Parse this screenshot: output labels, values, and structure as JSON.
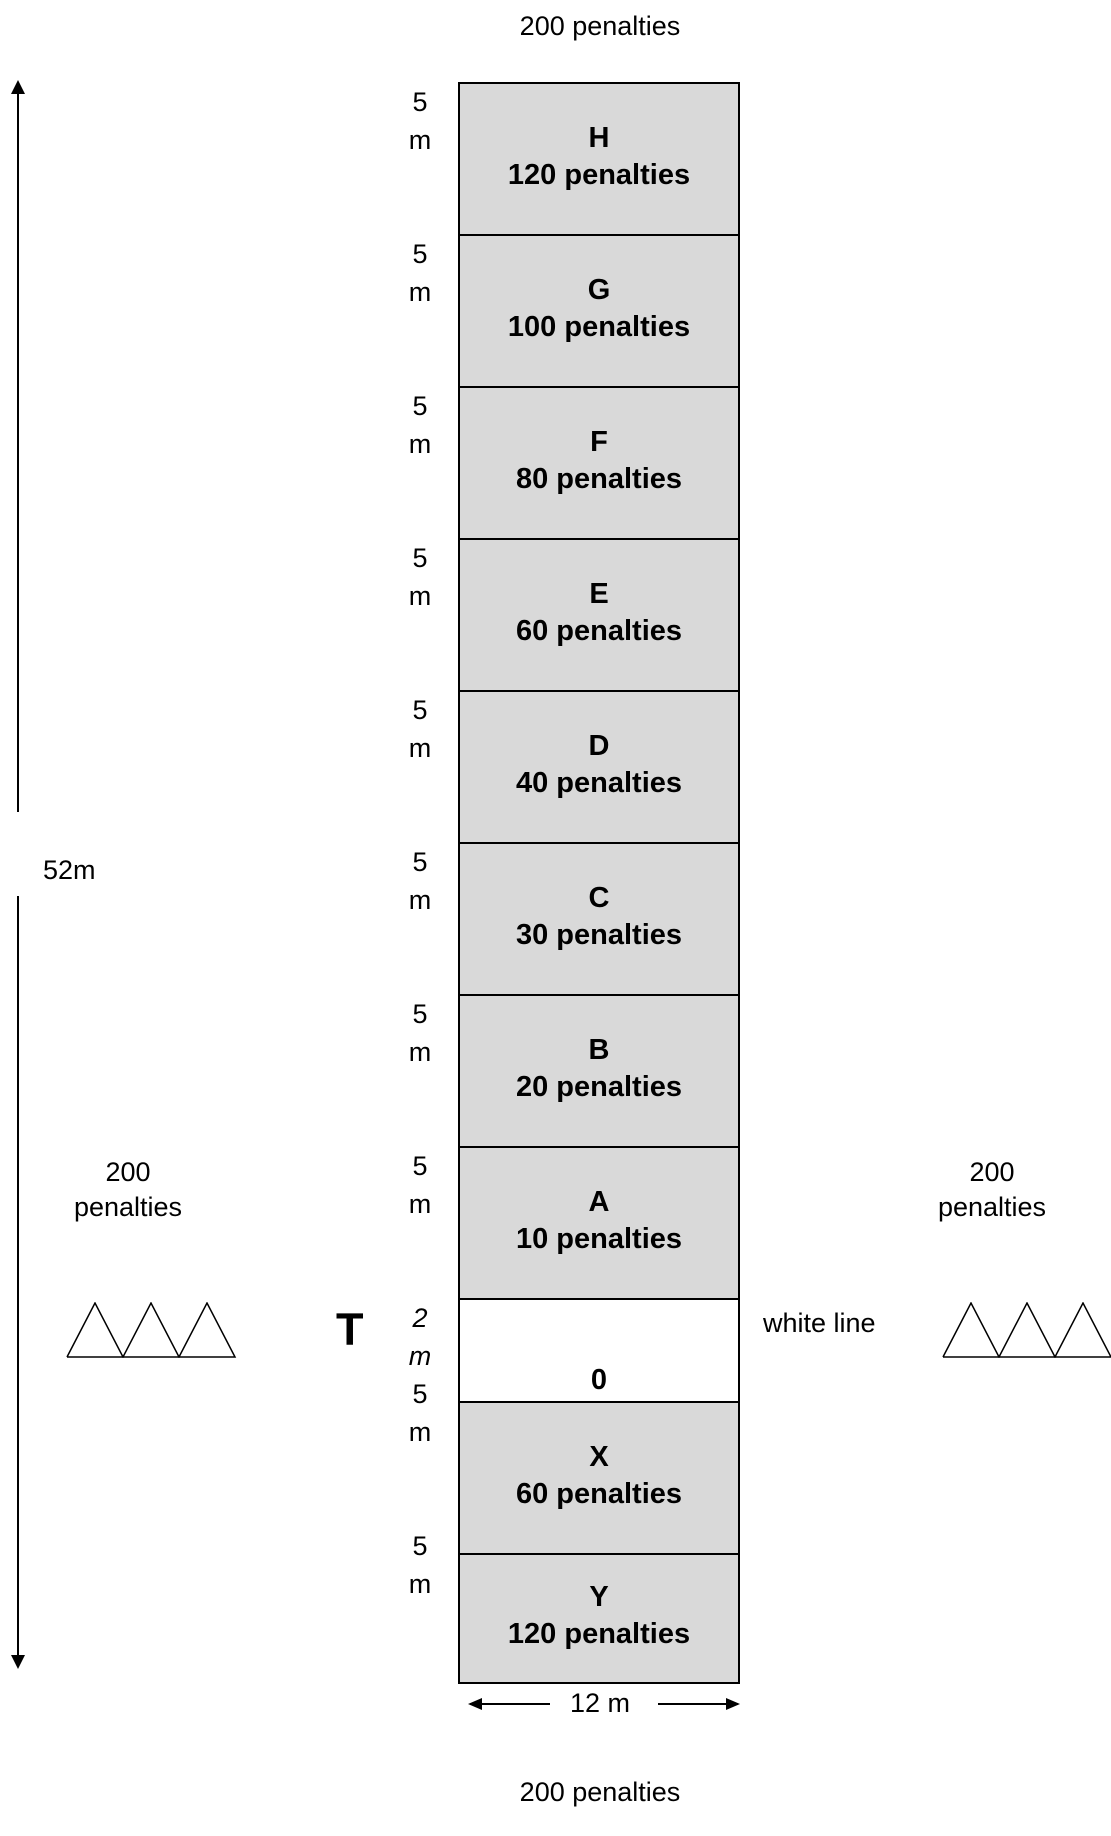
{
  "labels": {
    "top_penalty": "200 penalties",
    "bottom_penalty": "200 penalties",
    "left_penalty_value": "200",
    "left_penalty_word": "penalties",
    "right_penalty_value": "200",
    "right_penalty_word": "penalties",
    "length": "52m",
    "width": "12 m",
    "tee": "T",
    "white_line": "white line"
  },
  "zones": [
    {
      "letter": "H",
      "penalty": "120 penalties",
      "side_num": "5",
      "side_unit": "m"
    },
    {
      "letter": "G",
      "penalty": "100 penalties",
      "side_num": "5",
      "side_unit": "m"
    },
    {
      "letter": "F",
      "penalty": "80 penalties",
      "side_num": "5",
      "side_unit": "m"
    },
    {
      "letter": "E",
      "penalty": "60 penalties",
      "side_num": "5",
      "side_unit": "m"
    },
    {
      "letter": "D",
      "penalty": "40 penalties",
      "side_num": "5",
      "side_unit": "m"
    },
    {
      "letter": "C",
      "penalty": "30 penalties",
      "side_num": "5",
      "side_unit": "m"
    },
    {
      "letter": "B",
      "penalty": "20 penalties",
      "side_num": "5",
      "side_unit": "m"
    },
    {
      "letter": "A",
      "penalty": "10 penalties",
      "side_num": "5",
      "side_unit": "m"
    },
    {
      "letter": "0",
      "side_num": "2",
      "side_unit": "m"
    },
    {
      "letter": "X",
      "penalty": "60 penalties",
      "side_num": "5",
      "side_unit": "m"
    },
    {
      "letter": "Y",
      "penalty": "120 penalties",
      "side_num": "5",
      "side_unit": "m"
    }
  ]
}
